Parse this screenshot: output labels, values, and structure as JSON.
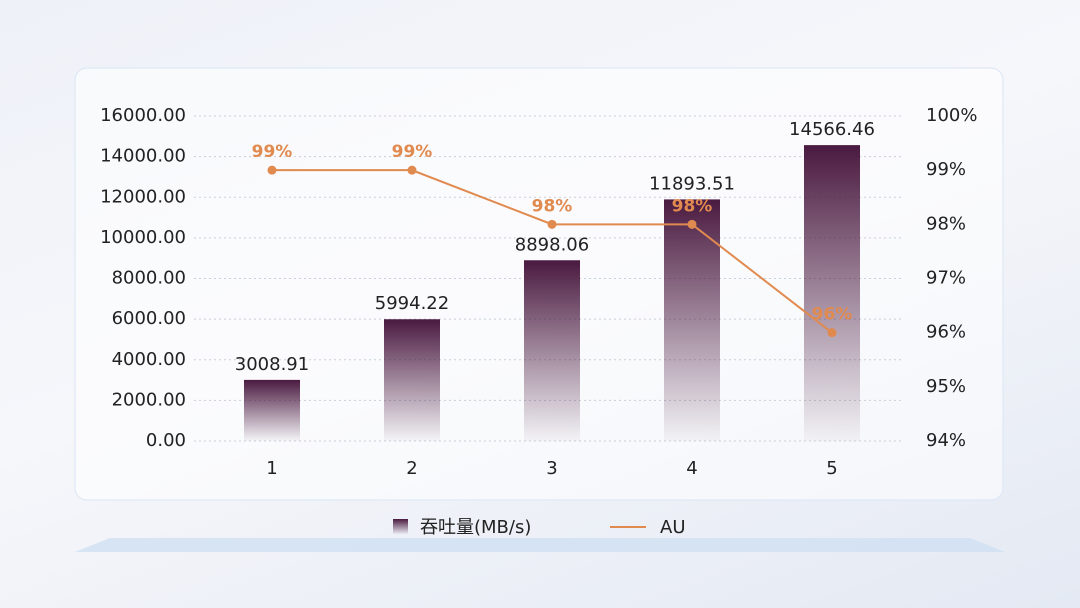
{
  "chart_data": {
    "type": "bar",
    "categories": [
      "1",
      "2",
      "3",
      "4",
      "5"
    ],
    "series": [
      {
        "name": "吞吐量(MB/s)",
        "type": "bar",
        "color": "#4a1a40",
        "values": [
          3008.91,
          5994.22,
          8898.06,
          11893.51,
          14566.46
        ]
      },
      {
        "name": "AU",
        "type": "line",
        "axis": "y2",
        "color": "#e08a4f",
        "values": [
          99,
          99,
          98,
          98,
          96
        ],
        "value_labels": [
          "99%",
          "99%",
          "98%",
          "98%",
          "96%"
        ]
      }
    ],
    "ylim": [
      0,
      16000
    ],
    "yticks": [
      {
        "value": 0,
        "label": "0.00"
      },
      {
        "value": 2000,
        "label": "2000.00"
      },
      {
        "value": 4000,
        "label": "4000.00"
      },
      {
        "value": 6000,
        "label": "6000.00"
      },
      {
        "value": 8000,
        "label": "8000.00"
      },
      {
        "value": 10000,
        "label": "10000.00"
      },
      {
        "value": 12000,
        "label": "12000.00"
      },
      {
        "value": 14000,
        "label": "14000.00"
      },
      {
        "value": 16000,
        "label": "16000.00"
      }
    ],
    "y2lim": [
      94,
      100
    ],
    "y2ticks": [
      {
        "value": 94,
        "label": "94%"
      },
      {
        "value": 95,
        "label": "95%"
      },
      {
        "value": 96,
        "label": "96%"
      },
      {
        "value": 97,
        "label": "97%"
      },
      {
        "value": 98,
        "label": "98%"
      },
      {
        "value": 99,
        "label": "99%"
      },
      {
        "value": 100,
        "label": "100%"
      }
    ],
    "grid": true,
    "legend": "bottom"
  }
}
